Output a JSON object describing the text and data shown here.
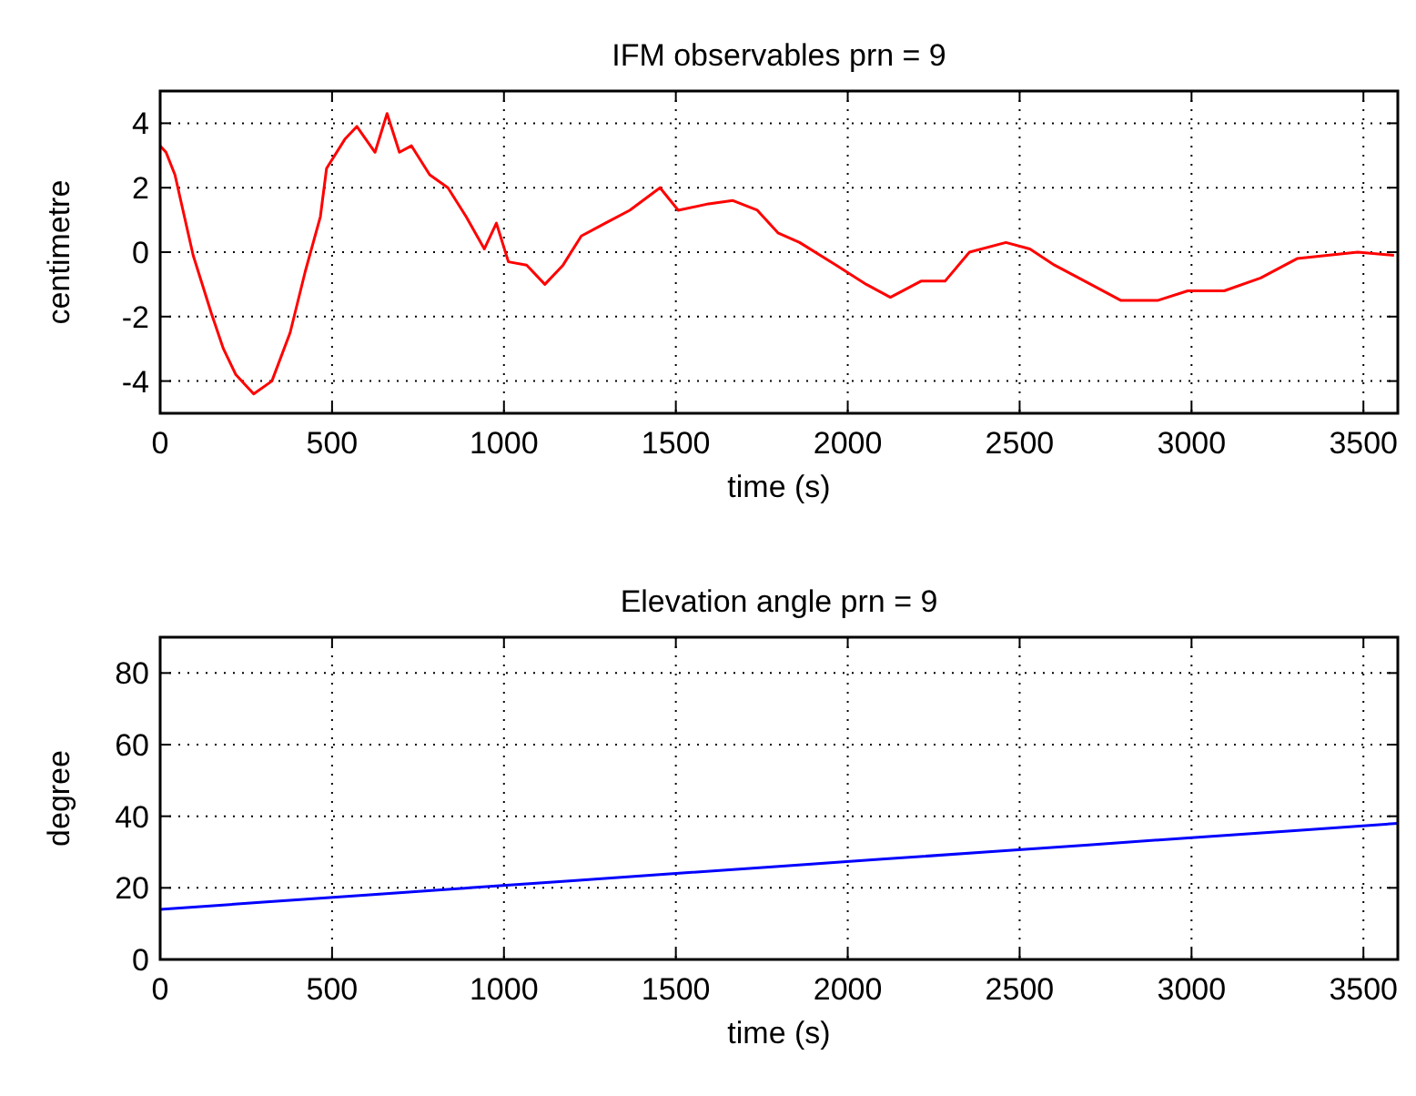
{
  "chart_data": [
    {
      "type": "line",
      "title": "IFM observables prn = 9",
      "xlabel": "time (s)",
      "ylabel": "centimetre",
      "xlim": [
        0,
        3600
      ],
      "xticks": [
        0,
        500,
        1000,
        1500,
        2000,
        2500,
        3000,
        3500
      ],
      "ylim": [
        -5,
        5
      ],
      "yticks": [
        -4,
        -2,
        0,
        2,
        4
      ],
      "grid": true,
      "series": [
        {
          "color": "#ff0000",
          "x": [
            0,
            17,
            43,
            96,
            149,
            184,
            220,
            272,
            325,
            378,
            422,
            466,
            484,
            537,
            572,
            625,
            660,
            696,
            731,
            784,
            837,
            890,
            943,
            978,
            1013,
            1066,
            1119,
            1172,
            1225,
            1295,
            1366,
            1454,
            1507,
            1595,
            1666,
            1737,
            1797,
            1860,
            1966,
            2054,
            2124,
            2213,
            2283,
            2354,
            2460,
            2530,
            2601,
            2707,
            2795,
            2901,
            2989,
            3095,
            3201,
            3307,
            3395,
            3483,
            3589
          ],
          "values": [
            3.3,
            3.1,
            2.4,
            -0.1,
            -1.9,
            -3.0,
            -3.8,
            -4.4,
            -4.0,
            -2.5,
            -0.6,
            1.1,
            2.6,
            3.5,
            3.9,
            3.1,
            4.3,
            3.1,
            3.3,
            2.4,
            2.0,
            1.1,
            0.1,
            0.9,
            -0.3,
            -0.4,
            -1.0,
            -0.4,
            0.5,
            0.9,
            1.3,
            2.0,
            1.3,
            1.5,
            1.6,
            1.3,
            0.6,
            0.3,
            -0.4,
            -1.0,
            -1.4,
            -0.9,
            -0.9,
            0.0,
            0.3,
            0.1,
            -0.4,
            -1.0,
            -1.5,
            -1.5,
            -1.2,
            -1.2,
            -0.8,
            -0.2,
            -0.1,
            0.0,
            -0.1
          ]
        }
      ]
    },
    {
      "type": "line",
      "title": "Elevation angle prn = 9",
      "xlabel": "time (s)",
      "ylabel": "degree",
      "xlim": [
        0,
        3600
      ],
      "xticks": [
        0,
        500,
        1000,
        1500,
        2000,
        2500,
        3000,
        3500
      ],
      "ylim": [
        0,
        90
      ],
      "yticks": [
        0,
        20,
        40,
        60,
        80
      ],
      "grid": true,
      "series": [
        {
          "color": "#0000ff",
          "x": [
            0,
            300,
            600,
            900,
            1200,
            1500,
            1800,
            2100,
            2400,
            2700,
            3000,
            3300,
            3600
          ],
          "values": [
            14,
            16,
            18,
            20,
            22,
            24,
            26,
            28,
            30,
            32,
            34,
            36,
            38
          ]
        }
      ]
    }
  ]
}
